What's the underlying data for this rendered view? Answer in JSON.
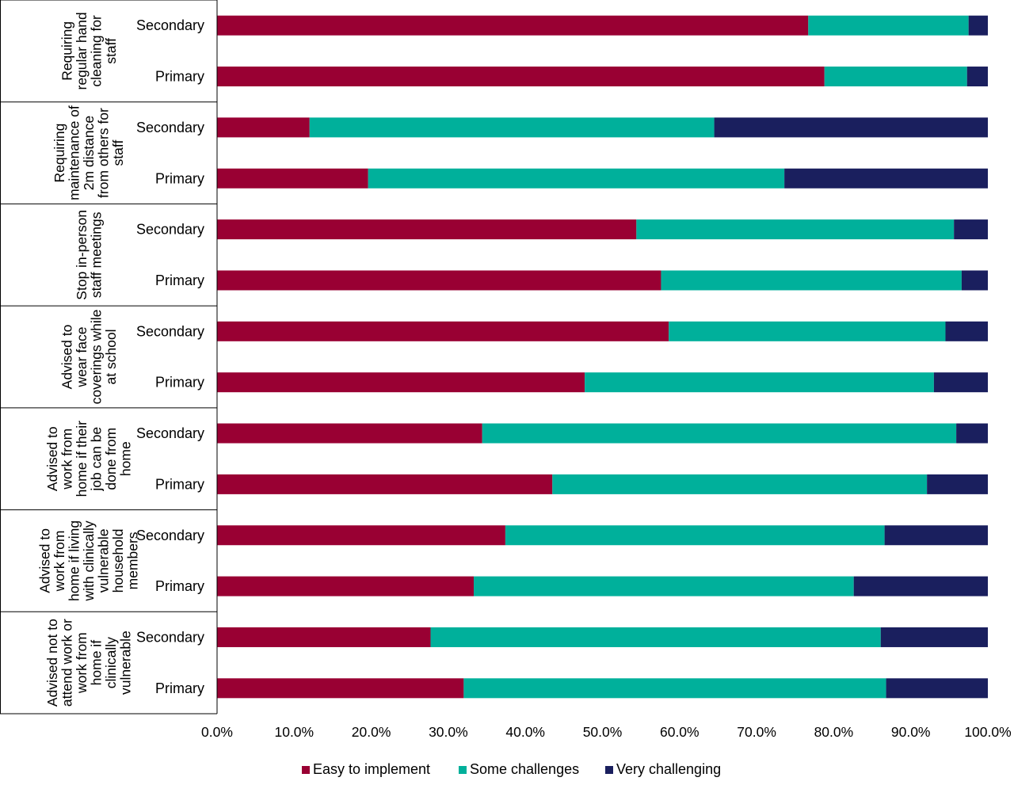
{
  "chart_data": {
    "type": "bar",
    "orientation": "horizontal",
    "stacked": true,
    "title": "",
    "xlabel": "",
    "ylabel": "",
    "xlim": [
      0,
      100
    ],
    "x_ticks": [
      "0.0%",
      "10.0%",
      "20.0%",
      "30.0%",
      "40.0%",
      "50.0%",
      "60.0%",
      "70.0%",
      "80.0%",
      "90.0%",
      "100.0%"
    ],
    "grid": false,
    "legend_position": "bottom",
    "series": [
      {
        "name": "Easy to implement",
        "color": "#990033"
      },
      {
        "name": "Some challenges",
        "color": "#00b09b"
      },
      {
        "name": "Very challenging",
        "color": "#1a1f5e"
      }
    ],
    "groups": [
      {
        "label_lines": [
          "Requiring",
          "regular hand",
          "cleaning for",
          "staff"
        ],
        "bars": [
          {
            "label": "Secondary",
            "values": [
              76.7,
              20.8,
              2.5
            ]
          },
          {
            "label": "Primary",
            "values": [
              78.8,
              18.5,
              2.7
            ]
          }
        ]
      },
      {
        "label_lines": [
          "Requiring",
          "maintenance of",
          "2m distance",
          "from others for",
          "staff"
        ],
        "bars": [
          {
            "label": "Secondary",
            "values": [
              12.0,
              52.5,
              35.5
            ]
          },
          {
            "label": "Primary",
            "values": [
              19.6,
              54.0,
              26.4
            ]
          }
        ]
      },
      {
        "label_lines": [
          "Stop in-person",
          "staff meetings"
        ],
        "bars": [
          {
            "label": "Secondary",
            "values": [
              54.4,
              41.2,
              4.4
            ]
          },
          {
            "label": "Primary",
            "values": [
              57.6,
              39.0,
              3.4
            ]
          }
        ]
      },
      {
        "label_lines": [
          "Advised to",
          "wear face",
          "coverings while",
          "at school"
        ],
        "bars": [
          {
            "label": "Secondary",
            "values": [
              58.6,
              35.9,
              5.5
            ]
          },
          {
            "label": "Primary",
            "values": [
              47.7,
              45.3,
              7.0
            ]
          }
        ]
      },
      {
        "label_lines": [
          "Advised to",
          "work from",
          "home if their",
          "job can be",
          "done from",
          "home"
        ],
        "bars": [
          {
            "label": "Secondary",
            "values": [
              34.4,
              61.5,
              4.1
            ]
          },
          {
            "label": "Primary",
            "values": [
              43.5,
              48.6,
              7.9
            ]
          }
        ]
      },
      {
        "label_lines": [
          "Advised to",
          "work from",
          "home if  living",
          "with clinically",
          "vulnerable",
          "household",
          "members"
        ],
        "bars": [
          {
            "label": "Secondary",
            "values": [
              37.4,
              49.2,
              13.4
            ]
          },
          {
            "label": "Primary",
            "values": [
              33.3,
              49.3,
              17.4
            ]
          }
        ]
      },
      {
        "label_lines": [
          "Advised not to",
          "attend work or",
          "work from",
          "home if",
          "clinically",
          "vulnerable"
        ],
        "bars": [
          {
            "label": "Secondary",
            "values": [
              27.7,
              58.4,
              13.9
            ]
          },
          {
            "label": "Primary",
            "values": [
              32.0,
              54.8,
              13.2
            ]
          }
        ]
      }
    ]
  }
}
